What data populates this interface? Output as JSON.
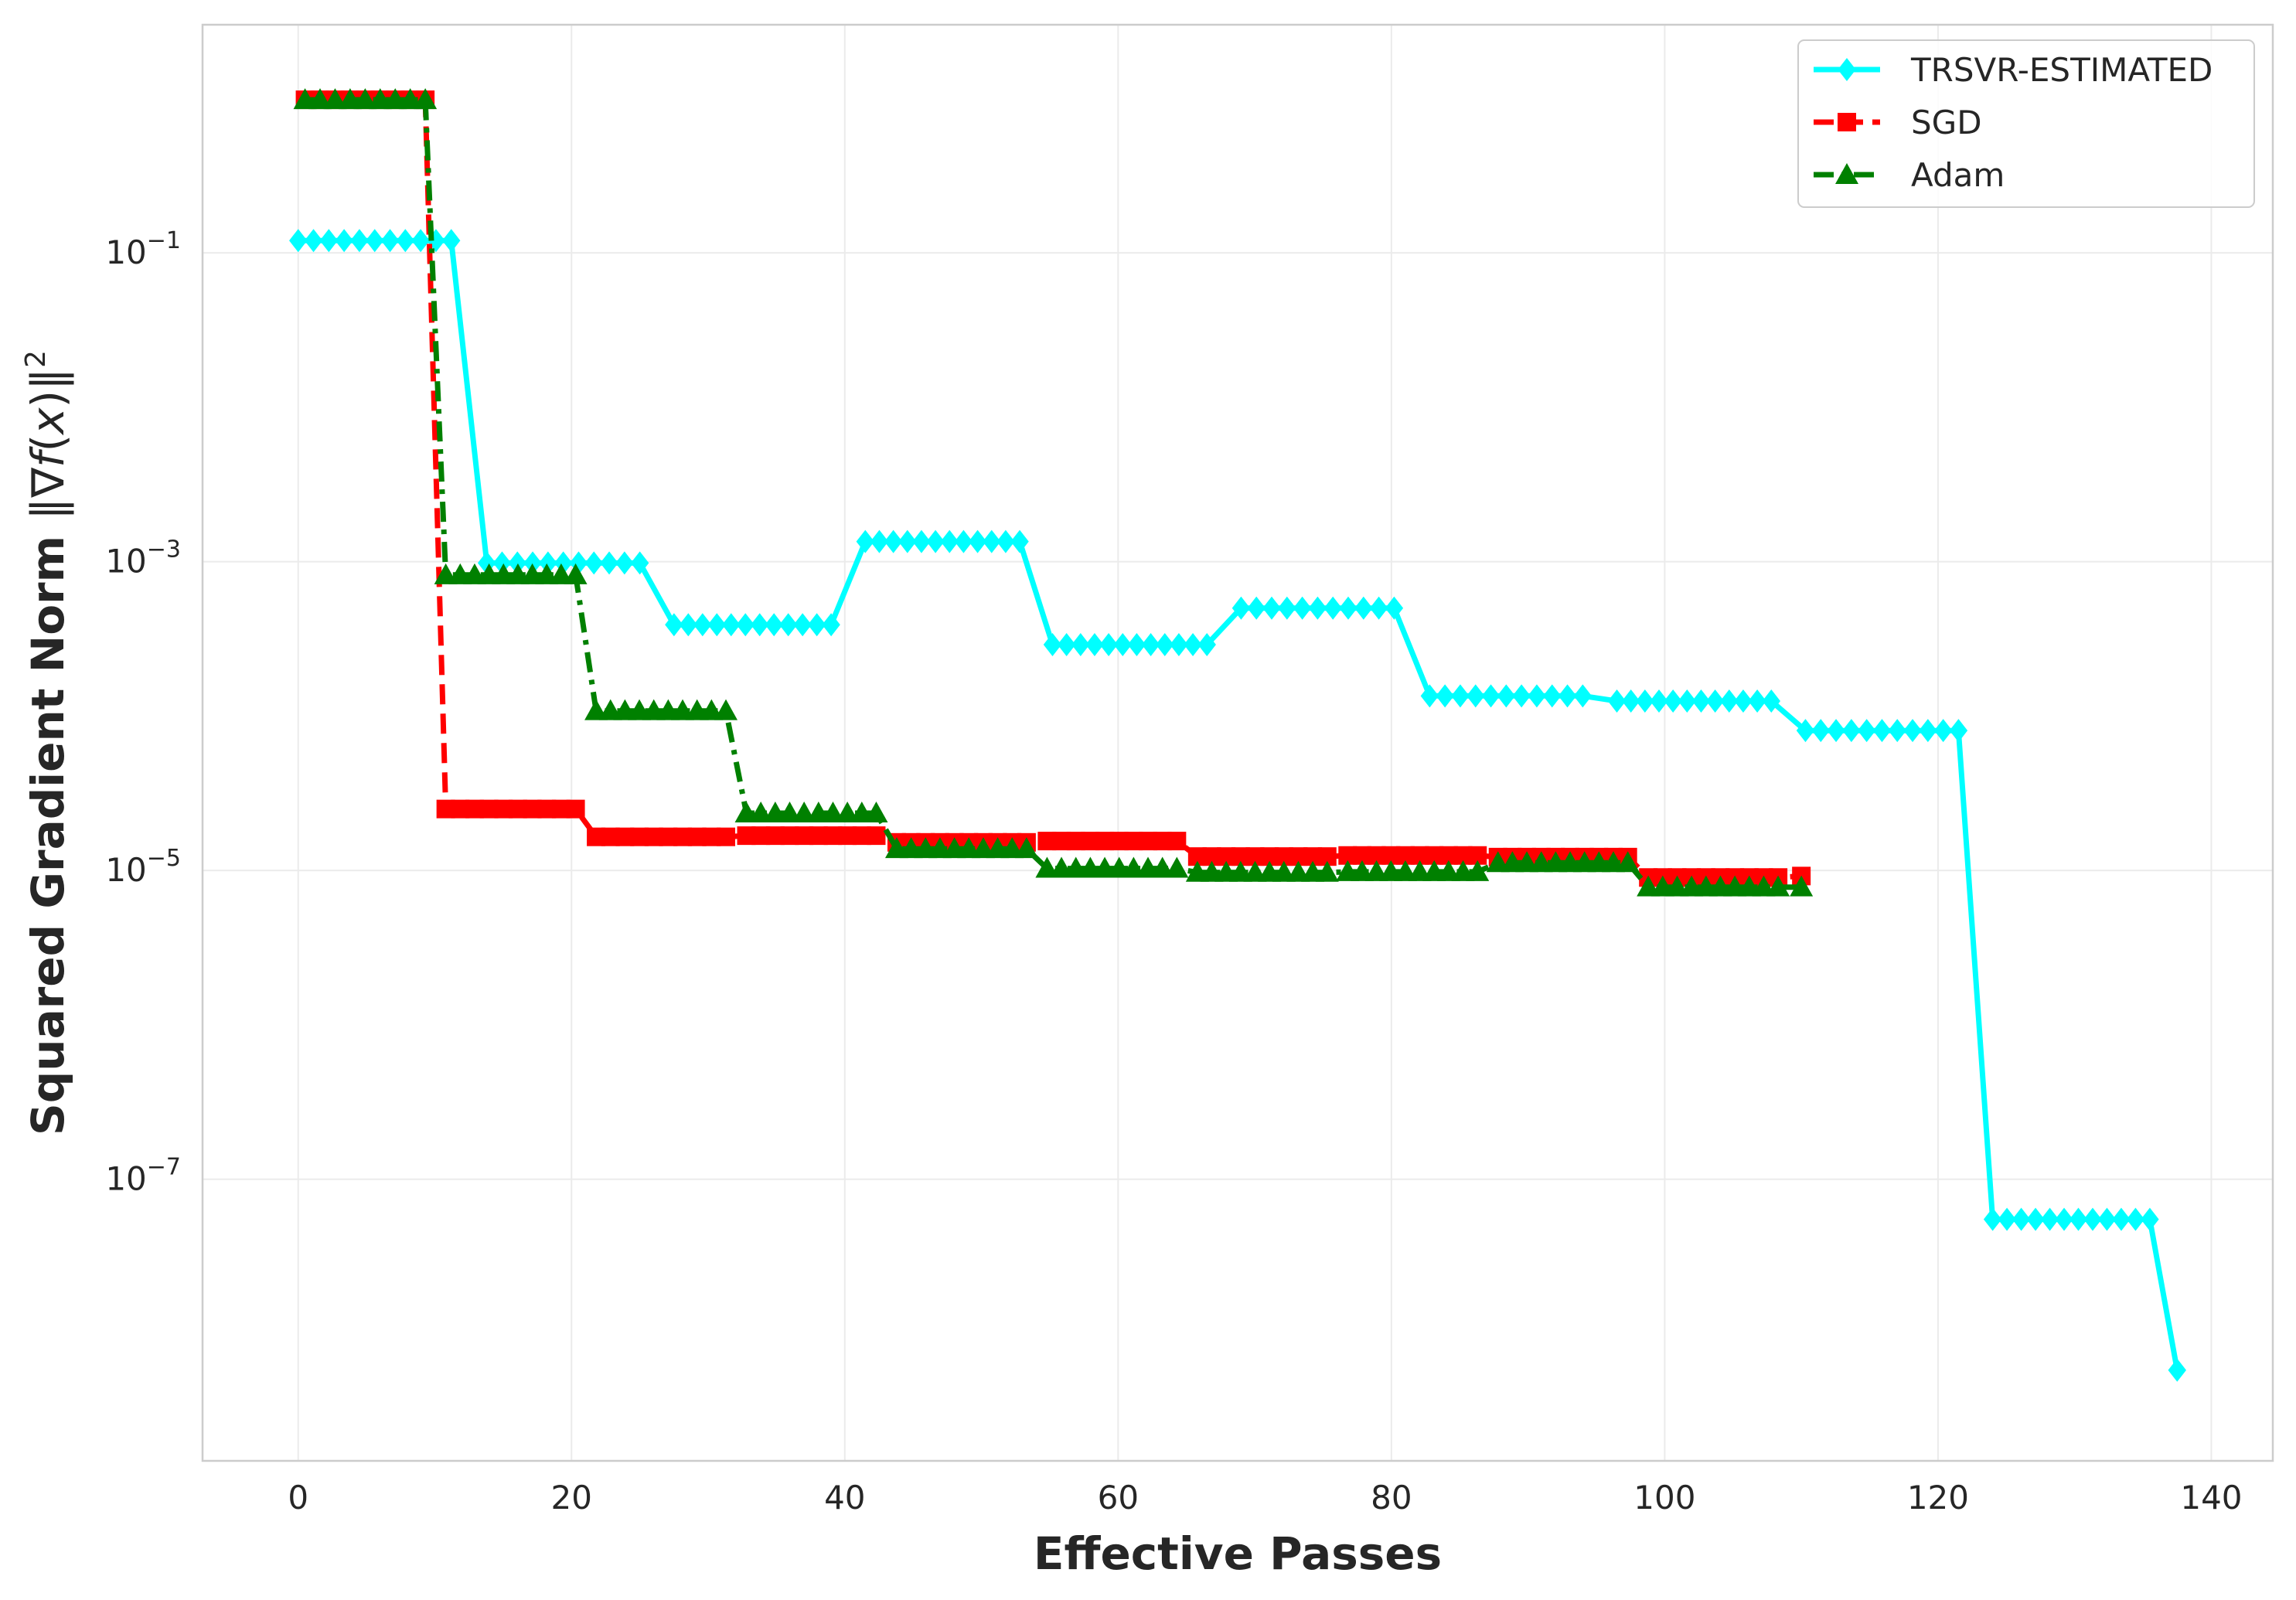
{
  "chart_data": {
    "type": "line",
    "title": "",
    "xlabel": "Effective Passes",
    "ylabel": "Squared Gradient Norm ‖∇f(x)‖²",
    "ylabel_parts": {
      "text": "Squared Gradient Norm ",
      "norm": "‖∇",
      "f": "f",
      "paren": "(",
      "x": "x",
      "close": ")‖",
      "sup": "2"
    },
    "xlim": [
      -7,
      144.5
    ],
    "ylim": [
      1.5e-09,
      3.0
    ],
    "yscale": "log",
    "grid": true,
    "legend_position": "top-right",
    "x_ticks": [
      0,
      20,
      40,
      60,
      80,
      100,
      120,
      140
    ],
    "x_tick_labels": [
      "0",
      "20",
      "40",
      "60",
      "80",
      "100",
      "120",
      "140"
    ],
    "y_ticks": [
      0.1,
      0.001,
      1e-05,
      1e-07
    ],
    "y_tick_labels": [
      {
        "base": "10",
        "exp": "−1"
      },
      {
        "base": "10",
        "exp": "−3"
      },
      {
        "base": "10",
        "exp": "−5"
      },
      {
        "base": "10",
        "exp": "−7"
      }
    ],
    "series": [
      {
        "name": "TRSVR-ESTIMATED",
        "color": "#00ffff",
        "marker": "diamond",
        "line_style": "solid",
        "segments": [
          {
            "x0": 0,
            "x1": 11.2,
            "y": 0.12
          },
          {
            "x0": 13.8,
            "x1": 25.0,
            "y": 0.00098
          },
          {
            "x0": 27.5,
            "x1": 39.0,
            "y": 0.00039
          },
          {
            "x0": 41.5,
            "x1": 52.8,
            "y": 0.00135
          },
          {
            "x0": 55.2,
            "x1": 66.5,
            "y": 0.00029
          },
          {
            "x0": 69.0,
            "x1": 80.2,
            "y": 0.0005
          },
          {
            "x0": 82.8,
            "x1": 94.0,
            "y": 0.000135
          },
          {
            "x0": 96.5,
            "x1": 107.8,
            "y": 0.000125
          },
          {
            "x0": 110.3,
            "x1": 121.5,
            "y": 8.05e-05
          },
          {
            "x0": 124.0,
            "x1": 135.5,
            "y": 5.5e-08
          },
          {
            "x0": 137.5,
            "x1": 137.5,
            "y": 5.8e-09
          }
        ]
      },
      {
        "name": "SGD",
        "color": "#ff0000",
        "marker": "square",
        "line_style": "dashed",
        "segments": [
          {
            "x0": 0.5,
            "x1": 9.3,
            "y": 0.98
          },
          {
            "x0": 10.8,
            "x1": 20.3,
            "y": 2.5e-05
          },
          {
            "x0": 21.8,
            "x1": 31.3,
            "y": 1.65e-05
          },
          {
            "x0": 32.8,
            "x1": 42.3,
            "y": 1.68e-05
          },
          {
            "x0": 43.8,
            "x1": 53.3,
            "y": 1.52e-05
          },
          {
            "x0": 54.8,
            "x1": 64.3,
            "y": 1.55e-05
          },
          {
            "x0": 65.8,
            "x1": 75.3,
            "y": 1.23e-05
          },
          {
            "x0": 76.8,
            "x1": 86.3,
            "y": 1.25e-05
          },
          {
            "x0": 87.8,
            "x1": 97.3,
            "y": 1.22e-05
          },
          {
            "x0": 98.8,
            "x1": 108.3,
            "y": 9e-06
          },
          {
            "x0": 110.0,
            "x1": 110.0,
            "y": 9.2e-06
          }
        ]
      },
      {
        "name": "Adam",
        "color": "#008000",
        "marker": "triangle",
        "line_style": "dashdot",
        "segments": [
          {
            "x0": 0.5,
            "x1": 9.3,
            "y": 0.98
          },
          {
            "x0": 10.8,
            "x1": 20.3,
            "y": 0.00082
          },
          {
            "x0": 21.8,
            "x1": 31.3,
            "y": 0.000108
          },
          {
            "x0": 32.8,
            "x1": 42.3,
            "y": 2.35e-05
          },
          {
            "x0": 43.8,
            "x1": 53.3,
            "y": 1.38e-05
          },
          {
            "x0": 54.8,
            "x1": 64.3,
            "y": 1.03e-05
          },
          {
            "x0": 65.8,
            "x1": 75.3,
            "y": 9.7e-06
          },
          {
            "x0": 76.8,
            "x1": 86.3,
            "y": 9.8e-06
          },
          {
            "x0": 87.8,
            "x1": 97.3,
            "y": 1.12e-05
          },
          {
            "x0": 98.8,
            "x1": 108.3,
            "y": 7.8e-06
          },
          {
            "x0": 110.0,
            "x1": 110.0,
            "y": 7.8e-06
          }
        ]
      }
    ]
  }
}
